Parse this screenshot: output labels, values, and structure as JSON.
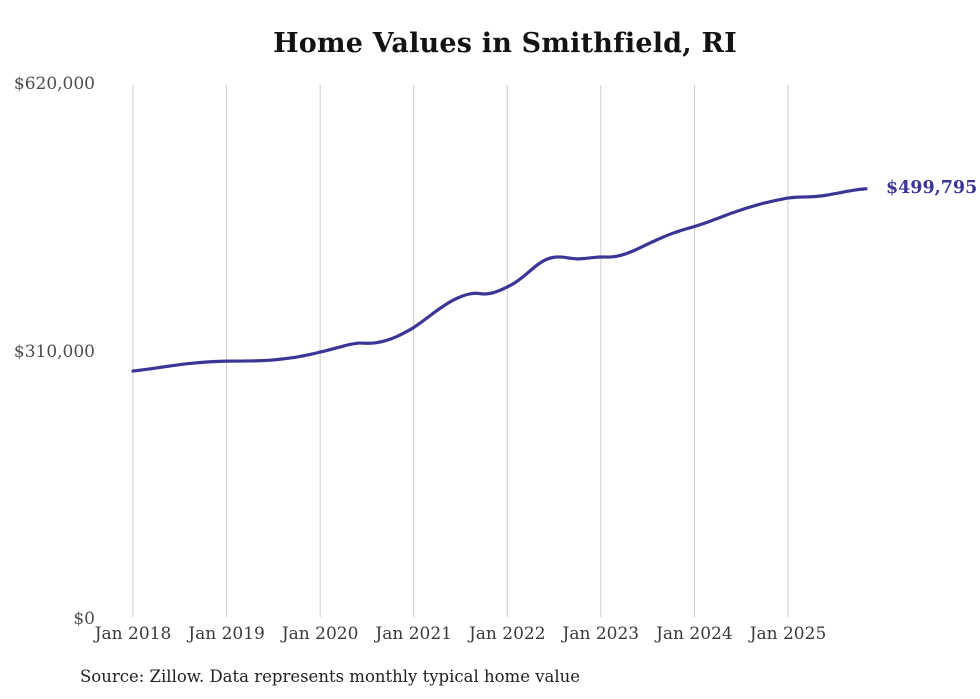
{
  "chart_data": {
    "type": "line",
    "title": "Home Values in Smithfield, RI",
    "source": "Source: Zillow. Data represents monthly typical home value",
    "end_label": "$499,795",
    "end_value": 499795,
    "line_color": "#3b3696",
    "grid_color": "#cccccc",
    "label_color": "#3b3696",
    "ylim": [
      0,
      620000
    ],
    "grid": "vertical-only",
    "legend": "none",
    "y_ticks": [
      {
        "label": "$620,000",
        "value": 620000
      },
      {
        "label": "$310,000",
        "value": 310000
      },
      {
        "label": "$0",
        "value": 0
      }
    ],
    "x_tick_labels": [
      "Jan 2018",
      "Jan 2019",
      "Jan 2020",
      "Jan 2021",
      "Jan 2022",
      "Jan 2023",
      "Jan 2024",
      "Jan 2025"
    ],
    "x_start": "Jan 2018",
    "x_end": "Nov 2025",
    "x_frequency": "monthly",
    "series": [
      {
        "name": "Typical home value",
        "values": [
          288500,
          289600,
          290800,
          292100,
          293400,
          294700,
          295900,
          297000,
          297900,
          298700,
          299300,
          299700,
          300000,
          300100,
          300100,
          300200,
          300400,
          300800,
          301400,
          302300,
          303400,
          304700,
          306400,
          308300,
          310500,
          312700,
          315100,
          317500,
          319600,
          320900,
          320700,
          321100,
          322800,
          325500,
          329200,
          333800,
          339000,
          345300,
          352000,
          358700,
          364900,
          370300,
          374600,
          377500,
          378700,
          377800,
          378900,
          381900,
          386000,
          391000,
          397600,
          405200,
          412500,
          417800,
          420400,
          420600,
          419400,
          418500,
          419000,
          420000,
          420700,
          420600,
          421500,
          423800,
          427200,
          431300,
          435600,
          439800,
          443800,
          447400,
          450600,
          453400,
          456000,
          458900,
          462100,
          465500,
          468900,
          472200,
          475300,
          478200,
          480900,
          483300,
          485400,
          487300,
          489000,
          489900,
          490200,
          490500,
          491200,
          492400,
          494000,
          495800,
          497400,
          498800,
          499795
        ]
      }
    ]
  }
}
